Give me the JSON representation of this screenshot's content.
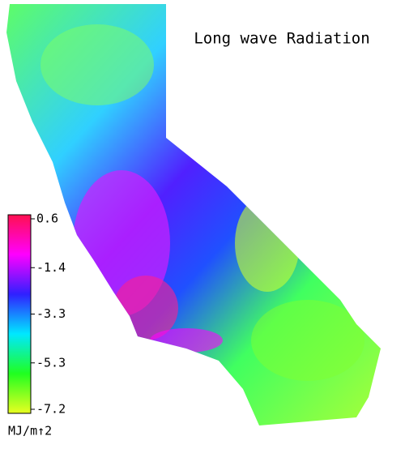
{
  "map": {
    "title": "Long wave Radiation",
    "colorbar": {
      "range": [
        0.6,
        -7.2
      ],
      "ticks": [
        0.6,
        -1.4,
        -3.3,
        -5.3,
        -7.2
      ],
      "colors": [
        "#ff1050",
        "#ff00ff",
        "#3020ff",
        "#00e8ff",
        "#20ff20",
        "#e8ff20"
      ],
      "unit": "MJ/m↑2"
    }
  }
}
